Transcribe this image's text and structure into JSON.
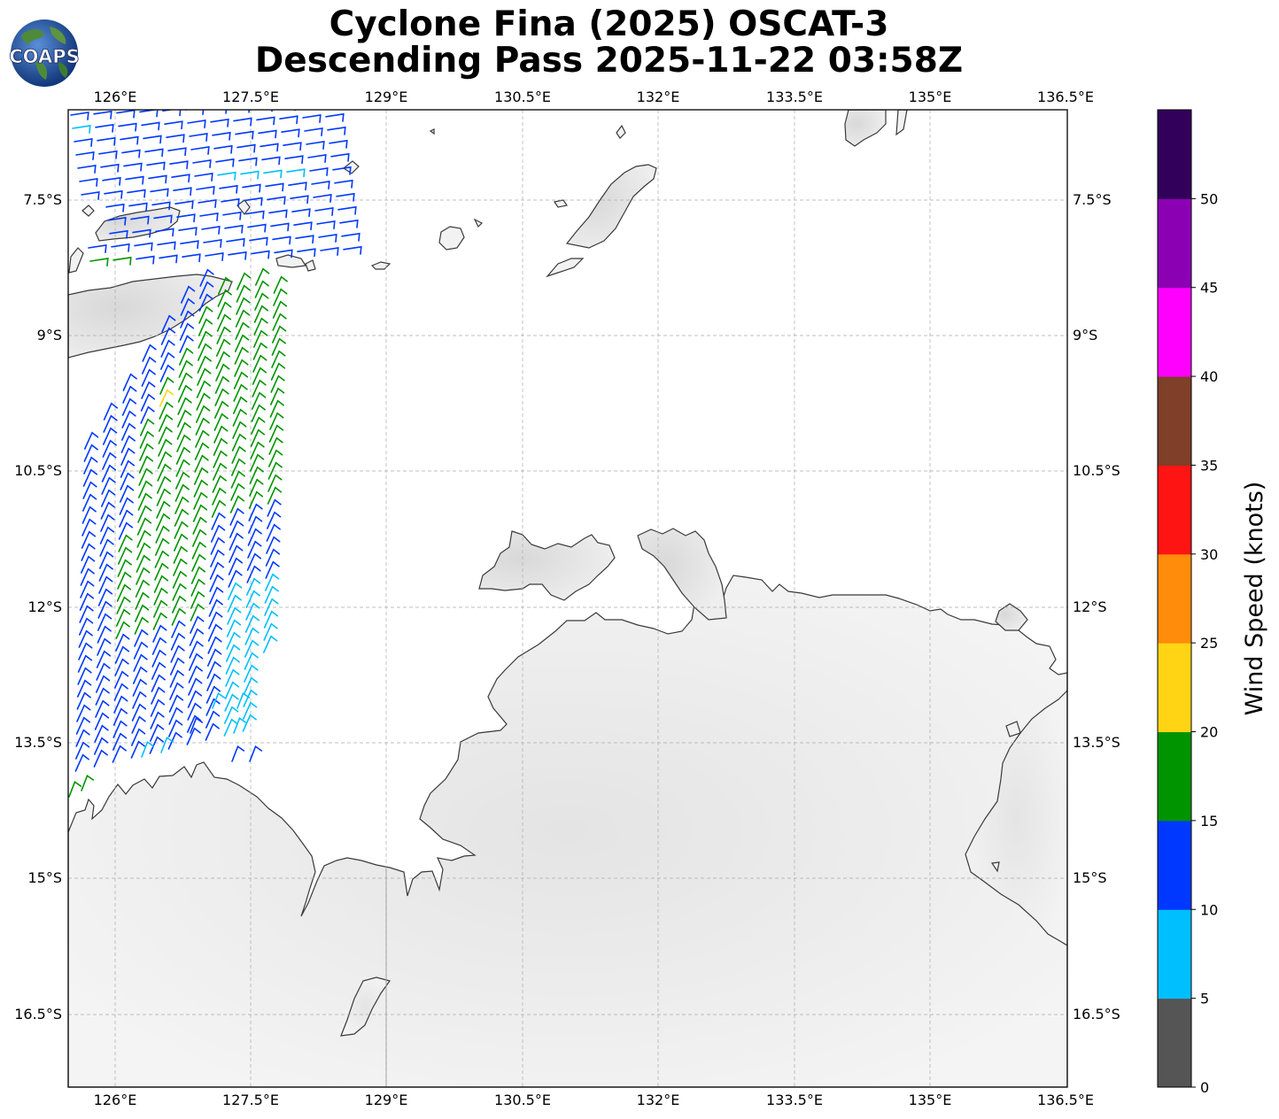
{
  "title": {
    "line1": "Cyclone Fina (2025) OSCAT-3",
    "line2": "Descending Pass 2025-11-22 03:58Z"
  },
  "logo": {
    "text": "COAPS",
    "icon": "globe-logo-icon"
  },
  "axes": {
    "lon_labels": [
      "126°E",
      "127.5°E",
      "129°E",
      "130.5°E",
      "132°E",
      "133.5°E",
      "135°E",
      "136.5°E"
    ],
    "lat_labels": [
      "7.5°S",
      "9°S",
      "10.5°S",
      "12°S",
      "13.5°S",
      "15°S",
      "16.5°S"
    ]
  },
  "colorbar": {
    "label": "Wind Speed (knots)",
    "ticks": [
      "0",
      "5",
      "10",
      "15",
      "20",
      "25",
      "30",
      "35",
      "40",
      "45",
      "50"
    ],
    "colors": [
      "#555555",
      "#00bfff",
      "#0038ff",
      "#009400",
      "#ffd414",
      "#ff8c0a",
      "#ff1414",
      "#7f3f28",
      "#ff00ff",
      "#8c00b4",
      "#32005a"
    ]
  },
  "chart_data": {
    "type": "map",
    "projection": "plate carree",
    "lon_range": [
      125.5,
      136.5
    ],
    "lat_range": [
      -17.3,
      -6.5
    ],
    "gridlines": "dashed",
    "colorbar_range": [
      0,
      55
    ]
  }
}
